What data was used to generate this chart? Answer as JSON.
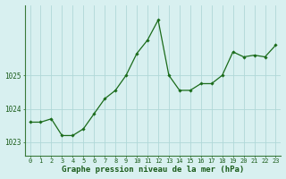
{
  "x": [
    0,
    1,
    2,
    3,
    4,
    5,
    6,
    7,
    8,
    9,
    10,
    11,
    12,
    13,
    14,
    15,
    16,
    17,
    18,
    19,
    20,
    21,
    22,
    23
  ],
  "y": [
    1023.6,
    1023.6,
    1023.7,
    1023.2,
    1023.2,
    1023.4,
    1023.85,
    1024.3,
    1024.55,
    1025.0,
    1025.65,
    1026.05,
    1026.65,
    1025.0,
    1024.55,
    1024.55,
    1024.75,
    1024.75,
    1025.0,
    1025.7,
    1025.55,
    1025.6,
    1025.55,
    1025.9
  ],
  "line_color": "#1a6b1a",
  "marker": "D",
  "marker_size": 1.8,
  "bg_color": "#d8f0f0",
  "grid_color": "#b0d8d8",
  "axis_color": "#3a7a3a",
  "tick_color": "#1a5c1a",
  "xlabel": "Graphe pression niveau de la mer (hPa)",
  "xlabel_fontsize": 6.5,
  "ylabel_ticks": [
    1023,
    1024,
    1025
  ],
  "ylim": [
    1022.6,
    1027.1
  ],
  "xlim": [
    -0.5,
    23.5
  ],
  "xticks": [
    0,
    1,
    2,
    3,
    4,
    5,
    6,
    7,
    8,
    9,
    10,
    11,
    12,
    13,
    14,
    15,
    16,
    17,
    18,
    19,
    20,
    21,
    22,
    23
  ],
  "xtick_labels": [
    "0",
    "1",
    "2",
    "3",
    "4",
    "5",
    "6",
    "7",
    "8",
    "9",
    "10",
    "11",
    "12",
    "13",
    "14",
    "15",
    "16",
    "17",
    "18",
    "19",
    "20",
    "21",
    "22",
    "23"
  ],
  "tick_fontsize": 5.0,
  "ytick_fontsize": 5.5
}
